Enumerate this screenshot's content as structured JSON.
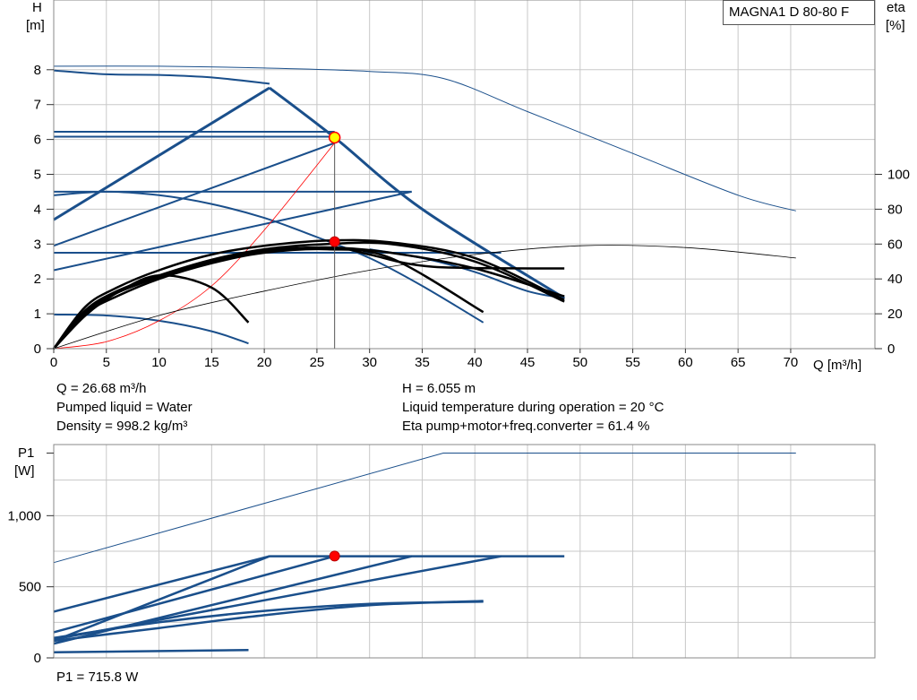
{
  "model": "MAGNA1 D 80-80 F",
  "upper_chart": {
    "y_label_top": "H",
    "y_unit": "[m]",
    "y2_label_top": "eta",
    "y2_unit": "[%]",
    "x_label": "Q [m³/h]"
  },
  "info": {
    "q": "Q = 26.68 m³/h",
    "h": "H = 6.055 m",
    "liquid": "Pumped liquid = Water",
    "temp": "Liquid temperature during operation = 20 °C",
    "density": "Density = 998.2 kg/m³",
    "eta": "Eta pump+motor+freq.converter = 61.4 %"
  },
  "lower_chart": {
    "y_label_top": "P1",
    "y_unit": "[W]"
  },
  "p1_readout": "P1 = 715.8 W",
  "colors": {
    "blue": "#1a4f8b",
    "black": "#000000",
    "red": "#ff0000",
    "grid": "#c8c8c8",
    "yellow": "#ffff00"
  },
  "chart_data": [
    {
      "type": "line",
      "title": "MAGNA1 D 80-80 F",
      "xlabel": "Q [m³/h]",
      "ylabel": "H [m]",
      "y2label": "eta [%]",
      "xlim": [
        0,
        78
      ],
      "ylim": [
        0,
        10
      ],
      "y2lim": [
        0,
        200
      ],
      "x_ticks": [
        0,
        5,
        10,
        15,
        20,
        25,
        30,
        35,
        40,
        45,
        50,
        55,
        60,
        65,
        70
      ],
      "y_ticks": [
        0,
        1,
        2,
        3,
        4,
        5,
        6,
        7,
        8
      ],
      "y2_ticks": [
        0,
        20,
        40,
        60,
        80,
        100
      ],
      "grid": true,
      "duty_point": {
        "q": 26.68,
        "h": 6.055,
        "eta": 61.4
      },
      "head_curves": [
        {
          "x": [
            0,
            5,
            10,
            15,
            20.5
          ],
          "y": [
            7.98,
            7.87,
            7.85,
            7.78,
            7.6
          ]
        },
        {
          "x": [
            20.5,
            26.68,
            35,
            48.5
          ],
          "y": [
            7.48,
            6.055,
            4.0,
            1.45
          ]
        },
        {
          "x": [
            0,
            20.5
          ],
          "y": [
            3.7,
            7.48
          ]
        },
        {
          "x": [
            0,
            26.68
          ],
          "y": [
            6.22,
            6.22
          ]
        },
        {
          "x": [
            0,
            26.68
          ],
          "y": [
            6.08,
            6.08
          ]
        },
        {
          "x": [
            0,
            26.68
          ],
          "y": [
            2.95,
            5.9
          ]
        },
        {
          "x": [
            0,
            34
          ],
          "y": [
            4.5,
            4.5
          ]
        },
        {
          "x": [
            0,
            34
          ],
          "y": [
            2.25,
            4.5
          ]
        },
        {
          "x": [
            0,
            5,
            10,
            15,
            20,
            25,
            30,
            35,
            40.8
          ],
          "y": [
            4.4,
            4.5,
            4.4,
            4.15,
            3.75,
            3.2,
            2.6,
            1.8,
            0.75
          ]
        },
        {
          "x": [
            0,
            42.5
          ],
          "y": [
            2.75,
            2.75
          ]
        },
        {
          "x": [
            0,
            5,
            10,
            15,
            18.5
          ],
          "y": [
            0.98,
            0.95,
            0.8,
            0.5,
            0.15
          ]
        },
        {
          "x": [
            30,
            35,
            40,
            45,
            48.5
          ],
          "y": [
            2.85,
            2.6,
            2.2,
            1.65,
            1.45
          ]
        }
      ],
      "eta_curves": [
        {
          "x": [
            0,
            3,
            6,
            10,
            15,
            20,
            26,
            32,
            40,
            48.5
          ],
          "y": [
            0,
            22,
            33,
            42,
            51,
            57,
            60,
            60,
            50,
            27
          ]
        },
        {
          "x": [
            0,
            3,
            6,
            10,
            15,
            20,
            26,
            32,
            40,
            48.5
          ],
          "y": [
            0,
            24,
            35,
            45,
            54,
            59,
            62,
            61,
            52,
            28
          ]
        },
        {
          "x": [
            0,
            3,
            6,
            10,
            15,
            20,
            26,
            32,
            40,
            48.5
          ],
          "y": [
            0,
            21,
            32,
            41,
            50,
            56,
            58,
            55,
            46,
            30
          ]
        },
        {
          "x": [
            0,
            3,
            6,
            10,
            15,
            20,
            26,
            32,
            40.8
          ],
          "y": [
            0,
            20,
            30,
            40,
            49,
            55,
            57,
            52,
            21
          ]
        },
        {
          "x": [
            0,
            3,
            6,
            10,
            15,
            18.5
          ],
          "y": [
            0,
            19,
            32,
            42,
            35,
            15
          ]
        },
        {
          "x": [
            0,
            10,
            20,
            30,
            40,
            50,
            60,
            70.5
          ],
          "y": [
            0,
            19,
            33,
            45,
            54,
            59,
            58,
            52
          ]
        },
        {
          "x": [
            20,
            26.68,
            30,
            36,
            48.5
          ],
          "y": [
            57,
            58,
            54,
            47,
            46
          ]
        }
      ],
      "npsh_curves": [
        {
          "x": [
            0,
            5,
            10,
            15,
            20,
            26.68
          ],
          "y": [
            0,
            0.2,
            0.8,
            1.8,
            3.4,
            5.9
          ]
        }
      ],
      "max_curve": {
        "x": [
          0,
          10,
          20,
          30,
          37,
          45,
          55,
          65,
          70.5
        ],
        "y": [
          8.1,
          8.1,
          8.05,
          7.95,
          7.75,
          6.8,
          5.6,
          4.4,
          3.95
        ]
      }
    },
    {
      "type": "line",
      "ylabel": "P1 [W]",
      "xlim": [
        0,
        78
      ],
      "ylim": [
        0,
        1500
      ],
      "y_ticks": [
        0,
        500,
        1000
      ],
      "y_tick_labels": [
        "0",
        "500",
        "1,000"
      ],
      "grid": true,
      "duty_point": {
        "q": 26.68,
        "p1": 715.8
      },
      "power_curves": [
        {
          "x": [
            0,
            37,
            70.5
          ],
          "y": [
            670,
            1440,
            1440
          ]
        },
        {
          "x": [
            0,
            20.5,
            48.5
          ],
          "y": [
            325,
            715,
            715
          ]
        },
        {
          "x": [
            0,
            20.5
          ],
          "y": [
            120,
            715
          ]
        },
        {
          "x": [
            0,
            26.68
          ],
          "y": [
            180,
            715
          ]
        },
        {
          "x": [
            0,
            34
          ],
          "y": [
            100,
            715
          ]
        },
        {
          "x": [
            0,
            42.5
          ],
          "y": [
            130,
            715
          ]
        },
        {
          "x": [
            0,
            10,
            20,
            30,
            40.8
          ],
          "y": [
            120,
            210,
            300,
            370,
            400
          ]
        },
        {
          "x": [
            0,
            18.5
          ],
          "y": [
            40,
            55
          ]
        },
        {
          "x": [
            0,
            10,
            20,
            30,
            40.8
          ],
          "y": [
            140,
            250,
            330,
            380,
            395
          ]
        }
      ]
    }
  ]
}
